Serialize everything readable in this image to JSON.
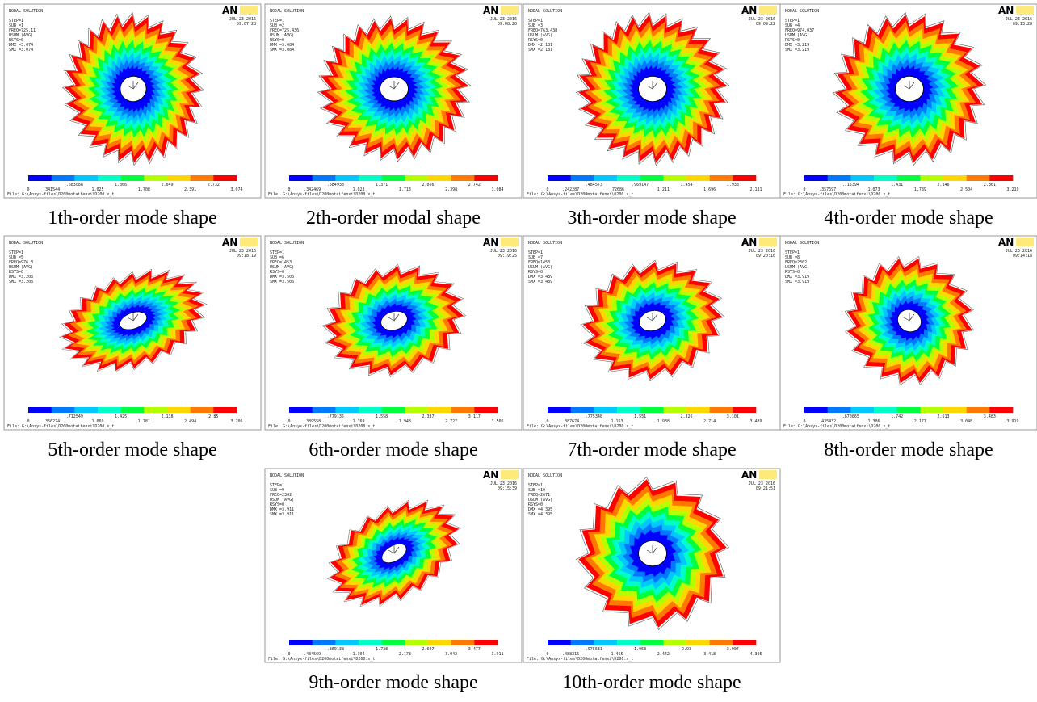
{
  "panels": [
    {
      "header": "NODAL SOLUTION",
      "info": [
        "STEP=1",
        "SUB =1",
        "FREQ=725.11",
        "USUM     (AVG)",
        "RSYS=0",
        "DMX =3.074",
        "SMX =3.074"
      ],
      "logo": "AN",
      "date": "JUL 23 2016",
      "time": "09:07:28",
      "legend": [
        "0",
        ".341544",
        ".683088",
        "1.025",
        "1.366",
        "1.708",
        "2.049",
        "2.391",
        "2.732",
        "3.074"
      ],
      "file": "File: G:\\Ansys-files\\D200motaifenxi\\D200.x_t",
      "caption": "1th-order mode shape"
    },
    {
      "header": "NODAL SOLUTION",
      "info": [
        "STEP=1",
        "SUB =2",
        "FREQ=725.436",
        "USUM     (AVG)",
        "RSYS=0",
        "DMX =3.084",
        "SMX =3.084"
      ],
      "logo": "AN",
      "date": "JUL 23 2016",
      "time": "09:08:20",
      "legend": [
        "0",
        ".342469",
        ".684938",
        "1.028",
        "1.371",
        "1.713",
        "2.056",
        "2.398",
        "2.742",
        "3.084"
      ],
      "file": "File: G:\\Ansys-files\\D200motaifenxi\\D200.x_t",
      "caption": "2th-order modal shape"
    },
    {
      "header": "NODAL SOLUTION",
      "info": [
        "STEP=1",
        "SUB =3",
        "FREQ=763.438",
        "USUM     (AVG)",
        "RSYS=0",
        "DMX =2.181",
        "SMX =2.181"
      ],
      "logo": "AN",
      "date": "JUL 23 2016",
      "time": "09:09:22",
      "legend": [
        "0",
        ".242287",
        ".484573",
        ".72686",
        ".969147",
        "1.211",
        "1.454",
        "1.696",
        "1.938",
        "2.181"
      ],
      "file": "File: G:\\Ansys-files\\D200motaifenxi\\D200.x_t",
      "caption": "3th-order mode shape"
    },
    {
      "header": "NODAL SOLUTION",
      "info": [
        "STEP=1",
        "SUB =4",
        "FREQ=974.037",
        "USUM     (AVG)",
        "RSYS=0",
        "DMX =3.219",
        "SMX =3.219"
      ],
      "logo": "AN",
      "date": "JUL 23 2016",
      "time": "09:13:28",
      "legend": [
        "0",
        ".357697",
        ".715394",
        "1.073",
        "1.431",
        "1.789",
        "2.146",
        "2.504",
        "2.861",
        "3.219"
      ],
      "file": "File: G:\\Ansys-files\\D200motaifenxi\\D200.x_t",
      "caption": "4th-order mode shape"
    },
    {
      "header": "NODAL SOLUTION",
      "info": [
        "STEP=1",
        "SUB =5",
        "FREQ=976.3",
        "USUM     (AVG)",
        "RSYS=0",
        "DMX =3.206",
        "SMX =3.206"
      ],
      "logo": "AN",
      "date": "JUL 23 2016",
      "time": "09:18:19",
      "legend": [
        "0",
        ".356274",
        ".712549",
        "1.069",
        "1.425",
        "1.781",
        "2.138",
        "2.494",
        "2.85",
        "3.206"
      ],
      "file": "File: G:\\Ansys-files\\D200motaifenxi\\D200.x_t",
      "caption": "5th-order mode shape"
    },
    {
      "header": "NODAL SOLUTION",
      "info": [
        "STEP=1",
        "SUB =6",
        "FREQ=1453",
        "USUM     (AVG)",
        "RSYS=0",
        "DMX =3.506",
        "SMX =3.506"
      ],
      "logo": "AN",
      "date": "JUL 23 2016",
      "time": "09:19:25",
      "legend": [
        "0",
        ".389558",
        ".779135",
        "1.169",
        "1.558",
        "1.948",
        "2.337",
        "2.727",
        "3.117",
        "3.506"
      ],
      "file": "File: G:\\Ansys-files\\D200motaifenxi\\D200.x_t",
      "caption": "6th-order mode shape"
    },
    {
      "header": "NODAL SOLUTION",
      "info": [
        "STEP=1",
        "SUB =7",
        "FREQ=1453",
        "USUM     (AVG)",
        "RSYS=0",
        "DMX =3.489",
        "SMX =3.489"
      ],
      "logo": "AN",
      "date": "JUL 23 2016",
      "time": "09:20:16",
      "legend": [
        "0",
        ".387674",
        ".775348",
        "1.163",
        "1.551",
        "1.938",
        "2.326",
        "2.714",
        "3.101",
        "3.489"
      ],
      "file": "File: G:\\Ansys-files\\D200motaifenxi\\D200.x_t",
      "caption": "7th-order mode shape"
    },
    {
      "header": "NODAL SOLUTION",
      "info": [
        "STEP=1",
        "SUB =8",
        "FREQ=2302",
        "USUM     (AVG)",
        "RSYS=0",
        "DMX =3.919",
        "SMX =3.919"
      ],
      "logo": "AN",
      "date": "JUL 23 2016",
      "time": "09:14:18",
      "legend": [
        "0",
        ".435432",
        ".870865",
        "1.306",
        "1.742",
        "2.177",
        "2.613",
        "3.048",
        "3.483",
        "3.919"
      ],
      "file": "File: G:\\Ansys-files\\D200motaifenxi\\D200.x_t",
      "caption": "8th-order mode shape"
    },
    {
      "header": "NODAL SOLUTION",
      "info": [
        "STEP=1",
        "SUB =9",
        "FREQ=2302",
        "USUM     (AVG)",
        "RSYS=0",
        "DMX =3.911",
        "SMX =3.911"
      ],
      "logo": "AN",
      "date": "JUL 23 2016",
      "time": "09:15:39",
      "legend": [
        "0",
        ".434569",
        ".869138",
        "1.304",
        "1.738",
        "2.173",
        "2.607",
        "3.042",
        "3.477",
        "3.911"
      ],
      "file": "File: G:\\Ansys-files\\D200motaifenxi\\D200.x_t",
      "caption": "9th-order mode shape"
    },
    {
      "header": "NODAL SOLUTION",
      "info": [
        "STEP=1",
        "SUB =10",
        "FREQ=2671",
        "USUM     (AVG)",
        "RSYS=0",
        "DMX =4.395",
        "SMX =4.395"
      ],
      "logo": "AN",
      "date": "JUL 23 2016",
      "time": "09:21:51",
      "legend": [
        "0",
        ".488315",
        ".976631",
        "1.465",
        "1.953",
        "2.442",
        "2.93",
        "3.418",
        "3.907",
        "4.395"
      ],
      "file": "File: G:\\Ansys-files\\D200motaifenxi\\D200.x_t",
      "caption": "10th-order mode shape"
    }
  ]
}
